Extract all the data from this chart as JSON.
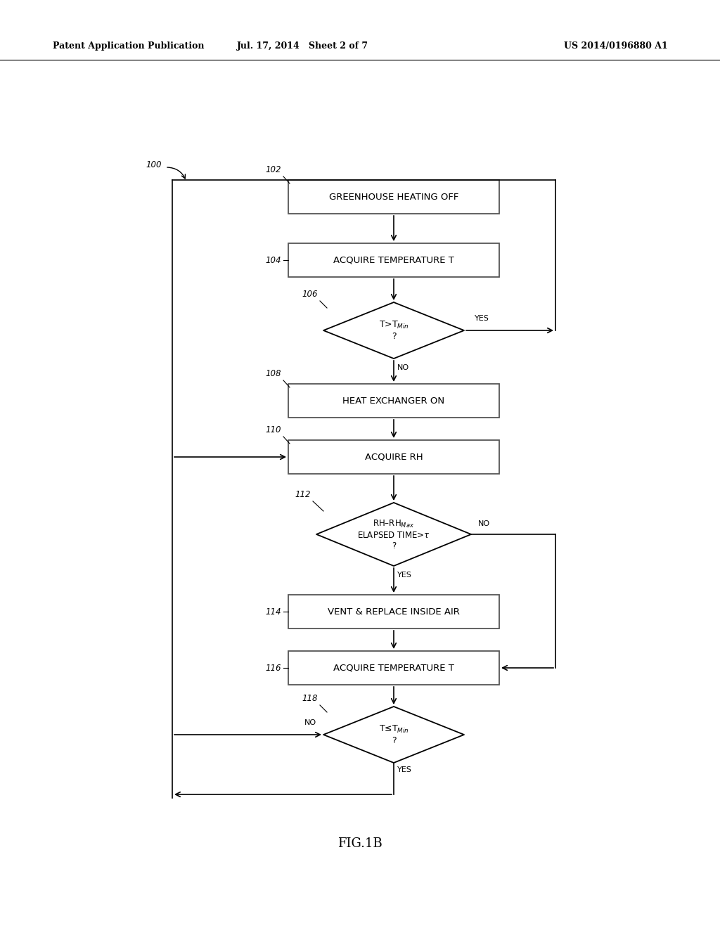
{
  "bg_color": "#ffffff",
  "header_left": "Patent Application Publication",
  "header_mid": "Jul. 17, 2014   Sheet 2 of 7",
  "header_right": "US 2014/0196880 A1",
  "figure_label": "FIG.1B"
}
